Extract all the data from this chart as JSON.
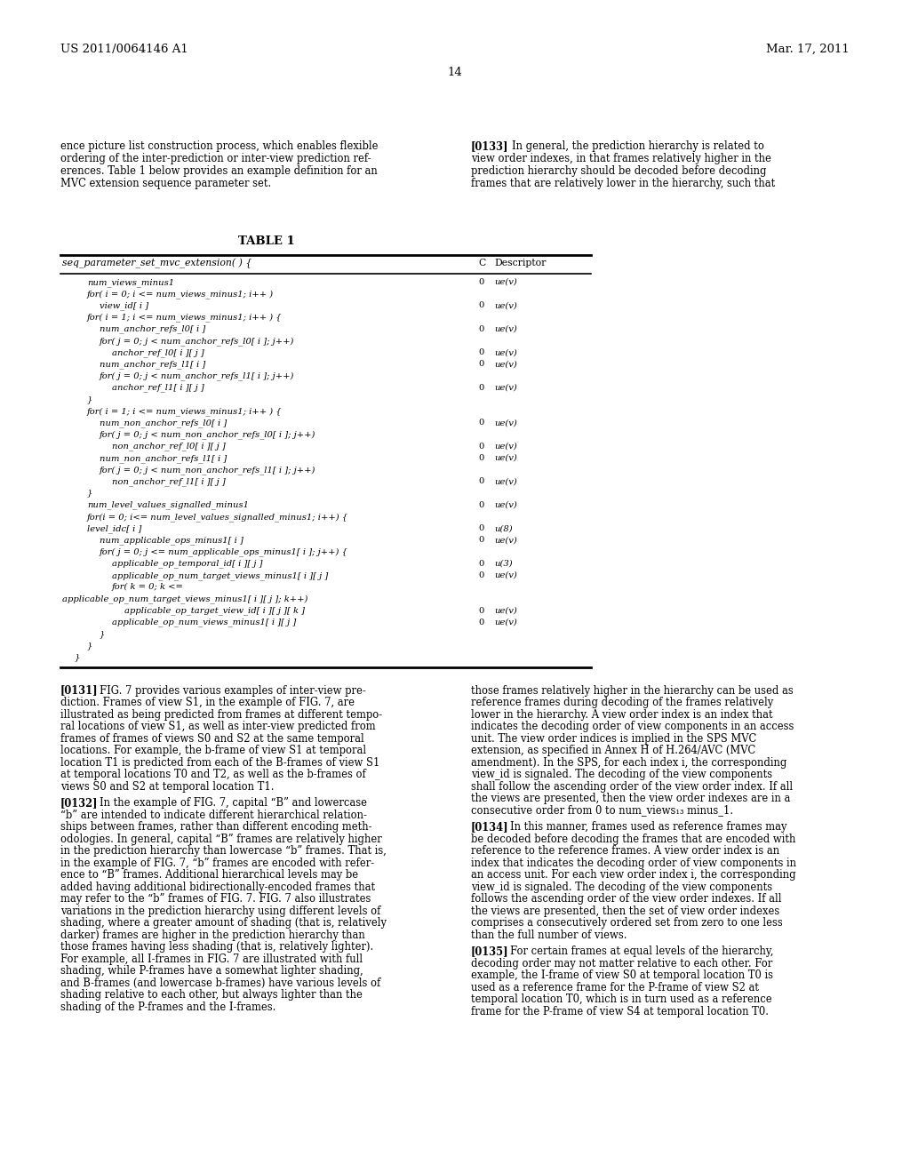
{
  "background_color": "#ffffff",
  "page_width": 10.24,
  "page_height": 13.2,
  "header_left": "US 2011/0064146 A1",
  "header_right": "Mar. 17, 2011",
  "page_number": "14",
  "table_title": "TABLE 1",
  "table_header_col1": "seq_parameter_set_mvc_extension( ) {",
  "table_header_col2": "C",
  "table_header_col3": "Descriptor",
  "table_rows": [
    {
      "indent": 2,
      "code": "num_views_minus1",
      "c": "0",
      "desc": "ue(v)"
    },
    {
      "indent": 2,
      "code": "for( i = 0; i <= num_views_minus1; i++ )",
      "c": "",
      "desc": ""
    },
    {
      "indent": 3,
      "code": "view_id[ i ]",
      "c": "0",
      "desc": "ue(v)"
    },
    {
      "indent": 2,
      "code": "for( i = 1; i <= num_views_minus1; i++ ) {",
      "c": "",
      "desc": ""
    },
    {
      "indent": 3,
      "code": "num_anchor_refs_l0[ i ]",
      "c": "0",
      "desc": "ue(v)"
    },
    {
      "indent": 3,
      "code": "for( j = 0; j < num_anchor_refs_l0[ i ]; j++)",
      "c": "",
      "desc": ""
    },
    {
      "indent": 4,
      "code": "anchor_ref_l0[ i ][ j ]",
      "c": "0",
      "desc": "ue(v)"
    },
    {
      "indent": 3,
      "code": "num_anchor_refs_l1[ i ]",
      "c": "0",
      "desc": "ue(v)"
    },
    {
      "indent": 3,
      "code": "for( j = 0; j < num_anchor_refs_l1[ i ]; j++)",
      "c": "",
      "desc": ""
    },
    {
      "indent": 4,
      "code": "anchor_ref_l1[ i ][ j ]",
      "c": "0",
      "desc": "ue(v)"
    },
    {
      "indent": 2,
      "code": "}",
      "c": "",
      "desc": ""
    },
    {
      "indent": 2,
      "code": "for( i = 1; i <= num_views_minus1; i++ ) {",
      "c": "",
      "desc": ""
    },
    {
      "indent": 3,
      "code": "num_non_anchor_refs_l0[ i ]",
      "c": "0",
      "desc": "ue(v)"
    },
    {
      "indent": 3,
      "code": "for( j = 0; j < num_non_anchor_refs_l0[ i ]; j++)",
      "c": "",
      "desc": ""
    },
    {
      "indent": 4,
      "code": "non_anchor_ref_l0[ i ][ j ]",
      "c": "0",
      "desc": "ue(v)"
    },
    {
      "indent": 3,
      "code": "num_non_anchor_refs_l1[ i ]",
      "c": "0",
      "desc": "ue(v)"
    },
    {
      "indent": 3,
      "code": "for( j = 0; j < num_non_anchor_refs_l1[ i ]; j++)",
      "c": "",
      "desc": ""
    },
    {
      "indent": 4,
      "code": "non_anchor_ref_l1[ i ][ j ]",
      "c": "0",
      "desc": "ue(v)"
    },
    {
      "indent": 2,
      "code": "}",
      "c": "",
      "desc": ""
    },
    {
      "indent": 2,
      "code": "num_level_values_signalled_minus1",
      "c": "0",
      "desc": "ue(v)"
    },
    {
      "indent": 2,
      "code": "for(i = 0; i<= num_level_values_signalled_minus1; i++) {",
      "c": "",
      "desc": ""
    },
    {
      "indent": 2,
      "code": "level_idc[ i ]",
      "c": "0",
      "desc": "u(8)"
    },
    {
      "indent": 3,
      "code": "num_applicable_ops_minus1[ i ]",
      "c": "0",
      "desc": "ue(v)"
    },
    {
      "indent": 3,
      "code": "for( j = 0; j <= num_applicable_ops_minus1[ i ]; j++) {",
      "c": "",
      "desc": ""
    },
    {
      "indent": 4,
      "code": "applicable_op_temporal_id[ i ][ j ]",
      "c": "0",
      "desc": "u(3)"
    },
    {
      "indent": 4,
      "code": "applicable_op_num_target_views_minus1[ i ][ j ]",
      "c": "0",
      "desc": "ue(v)"
    },
    {
      "indent": 4,
      "code": "for( k = 0; k <=",
      "c": "",
      "desc": ""
    },
    {
      "indent": 0,
      "code": "applicable_op_num_target_views_minus1[ i ][ j ]; k++)",
      "c": "",
      "desc": ""
    },
    {
      "indent": 5,
      "code": "applicable_op_target_view_id[ i ][ j ][ k ]",
      "c": "0",
      "desc": "ue(v)"
    },
    {
      "indent": 4,
      "code": "applicable_op_num_views_minus1[ i ][ j ]",
      "c": "0",
      "desc": "ue(v)"
    },
    {
      "indent": 3,
      "code": "}",
      "c": "",
      "desc": ""
    },
    {
      "indent": 2,
      "code": "}",
      "c": "",
      "desc": ""
    },
    {
      "indent": 1,
      "code": "}",
      "c": "",
      "desc": ""
    }
  ],
  "intro_left_lines": [
    "ence picture list construction process, which enables flexible",
    "ordering of the inter-prediction or inter-view prediction ref-",
    "erences. Table 1 below provides an example definition for an",
    "MVC extension sequence parameter set."
  ],
  "intro_right_lines": [
    "[0133]   In general, the prediction hierarchy is related to",
    "view order indexes, in that frames relatively higher in the",
    "prediction hierarchy should be decoded before decoding",
    "frames that are relatively lower in the hierarchy, such that"
  ],
  "para_left": [
    {
      "tag": "[0131]",
      "lines": [
        "FIG. 7 provides various examples of inter-view pre-",
        "diction. Frames of view S1, in the example of FIG. 7, are",
        "illustrated as being predicted from frames at different tempo-",
        "ral locations of view S1, as well as inter-view predicted from",
        "frames of frames of views S0 and S2 at the same temporal",
        "locations. For example, the b-frame of view S1 at temporal",
        "location T1 is predicted from each of the B-frames of view S1",
        "at temporal locations T0 and T2, as well as the b-frames of",
        "views S0 and S2 at temporal location T1."
      ]
    },
    {
      "tag": "[0132]",
      "lines": [
        "In the example of FIG. 7, capital “B” and lowercase",
        "“b” are intended to indicate different hierarchical relation-",
        "ships between frames, rather than different encoding meth-",
        "odologies. In general, capital “B” frames are relatively higher",
        "in the prediction hierarchy than lowercase “b” frames. That is,",
        "in the example of FIG. 7, “b” frames are encoded with refer-",
        "ence to “B” frames. Additional hierarchical levels may be",
        "added having additional bidirectionally-encoded frames that",
        "may refer to the “b” frames of FIG. 7. FIG. 7 also illustrates",
        "variations in the prediction hierarchy using different levels of",
        "shading, where a greater amount of shading (that is, relatively",
        "darker) frames are higher in the prediction hierarchy than",
        "those frames having less shading (that is, relatively lighter).",
        "For example, all I-frames in FIG. 7 are illustrated with full",
        "shading, while P-frames have a somewhat lighter shading,",
        "and B-frames (and lowercase b-frames) have various levels of",
        "shading relative to each other, but always lighter than the",
        "shading of the P-frames and the I-frames."
      ]
    }
  ],
  "para_right": [
    {
      "tag": "",
      "lines": [
        "those frames relatively higher in the hierarchy can be used as",
        "reference frames during decoding of the frames relatively",
        "lower in the hierarchy. A view order index is an index that",
        "indicates the decoding order of view components in an access",
        "unit. The view order indices is implied in the SPS MVC",
        "extension, as specified in Annex H of H.264/AVC (MVC",
        "amendment). In the SPS, for each index i, the corresponding",
        "view_id is signaled. The decoding of the view components",
        "shall follow the ascending order of the view order index. If all",
        "the views are presented, then the view order indexes are in a",
        "consecutive order from 0 to num_views₁₃ minus_1."
      ]
    },
    {
      "tag": "[0134]",
      "lines": [
        "In this manner, frames used as reference frames may",
        "be decoded before decoding the frames that are encoded with",
        "reference to the reference frames. A view order index is an",
        "index that indicates the decoding order of view components in",
        "an access unit. For each view order index i, the corresponding",
        "view_id is signaled. The decoding of the view components",
        "follows the ascending order of the view order indexes. If all",
        "the views are presented, then the set of view order indexes",
        "comprises a consecutively ordered set from zero to one less",
        "than the full number of views."
      ]
    },
    {
      "tag": "[0135]",
      "lines": [
        "For certain frames at equal levels of the hierarchy,",
        "decoding order may not matter relative to each other. For",
        "example, the I-frame of view S0 at temporal location T0 is",
        "used as a reference frame for the P-frame of view S2 at",
        "temporal location T0, which is in turn used as a reference",
        "frame for the P-frame of view S4 at temporal location T0."
      ]
    }
  ]
}
